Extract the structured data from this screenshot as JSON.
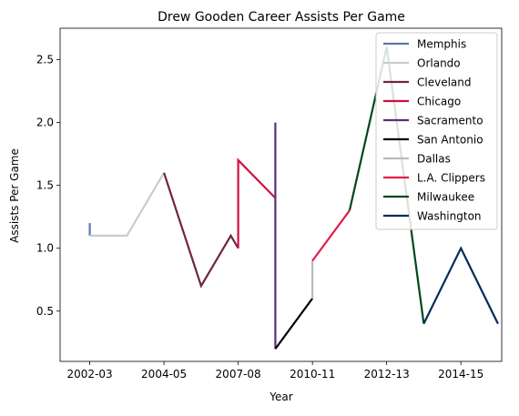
{
  "chart_data": {
    "type": "line",
    "title": "Drew Gooden Career Assists Per Game",
    "xlabel": "Year",
    "ylabel": "Assists Per Game",
    "x_tick_labels": [
      "2002-03",
      "2004-05",
      "2007-08",
      "2010-11",
      "2012-13",
      "2014-15"
    ],
    "x_tick_positions": [
      0,
      2,
      4,
      6,
      8,
      10
    ],
    "y_ticks": [
      0.5,
      1.0,
      1.5,
      2.0,
      2.5
    ],
    "xlim": [
      -0.8,
      11.1
    ],
    "ylim": [
      0.1,
      2.75
    ],
    "legend_position": "top-right",
    "grid": false,
    "series": [
      {
        "name": "Memphis",
        "color": "#5d76a9",
        "x": [
          0,
          0
        ],
        "y": [
          1.2,
          1.1
        ]
      },
      {
        "name": "Orlando",
        "color": "#c4ced4",
        "x": [
          0,
          1,
          2
        ],
        "y": [
          1.1,
          1.1,
          1.6
        ]
      },
      {
        "name": "Cleveland",
        "color": "#6f263d",
        "x": [
          2,
          3,
          3.8,
          4
        ],
        "y": [
          1.6,
          0.7,
          1.1,
          1.0
        ]
      },
      {
        "name": "Chicago",
        "color": "#ce1141",
        "x": [
          4,
          4,
          5
        ],
        "y": [
          1.0,
          1.7,
          1.4
        ]
      },
      {
        "name": "Sacramento",
        "color": "#5a2d81",
        "x": [
          5,
          5,
          5
        ],
        "y": [
          1.4,
          2.0,
          0.2
        ]
      },
      {
        "name": "San Antonio",
        "color": "#000000",
        "x": [
          5,
          6
        ],
        "y": [
          0.2,
          0.6
        ]
      },
      {
        "name": "Dallas",
        "color": "#bbbbbb",
        "x": [
          6,
          6
        ],
        "y": [
          0.6,
          0.9
        ]
      },
      {
        "name": "L.A. Clippers",
        "color": "#e31c49",
        "x": [
          6,
          7
        ],
        "y": [
          0.9,
          1.3
        ]
      },
      {
        "name": "Milwaukee",
        "color": "#00471b",
        "x": [
          7,
          8,
          9
        ],
        "y": [
          1.3,
          2.6,
          0.4
        ]
      },
      {
        "name": "Washington",
        "color": "#002b5c",
        "x": [
          9,
          10,
          11
        ],
        "y": [
          0.4,
          1.0,
          0.4
        ]
      }
    ]
  }
}
